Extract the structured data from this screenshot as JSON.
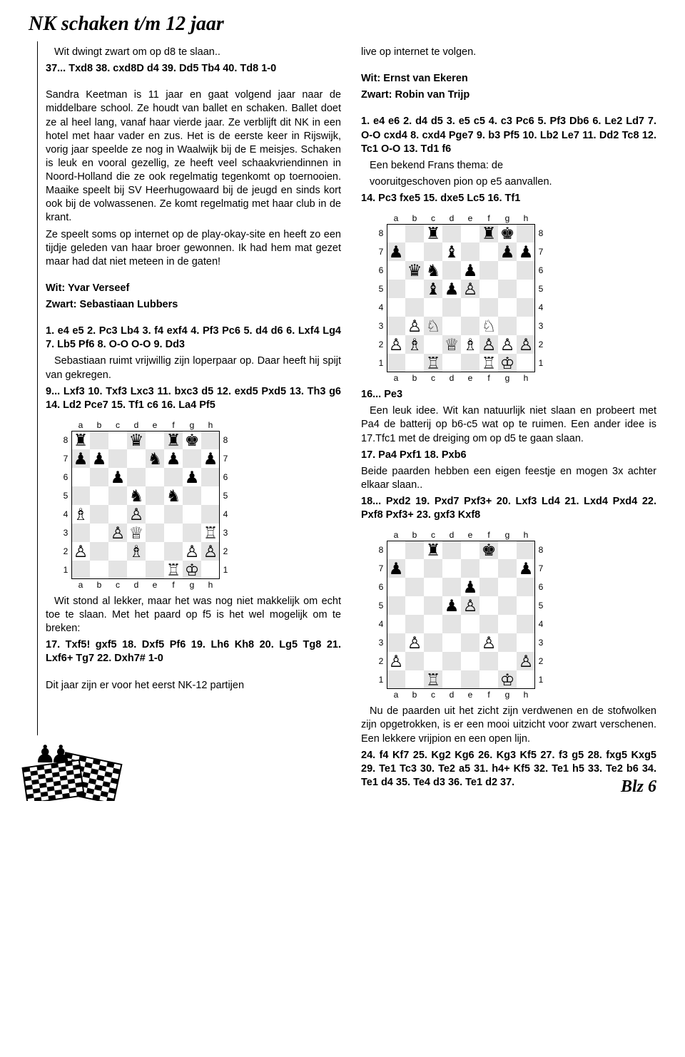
{
  "title": "NK schaken t/m 12 jaar",
  "page_label": "Blz 6",
  "col1": {
    "p1": "Wit dwingt zwart om op d8 te slaan..",
    "moves1": "37... Txd8 38. cxd8D d4 39. Dd5 Tb4 40. Td8 1-0",
    "bio": "Sandra Keetman is 11 jaar en gaat volgend jaar naar de middelbare school. Ze houdt van ballet en schaken. Ballet doet ze al heel lang, vanaf haar vierde jaar. Ze verblijft dit NK in een hotel met haar vader en zus. Het is de eerste keer in Rijswijk, vorig jaar speelde ze nog in Waalwijk bij de E meisjes. Schaken is leuk en vooral gezellig, ze heeft veel schaakvriendinnen in Noord-Holland die ze ook regelmatig tegenkomt op toernooien. Maaike speelt bij SV Heerhugowaard bij de jeugd en sinds kort ook bij de volwassenen. Ze komt regelmatig met haar club in de krant.",
    "bio2": "Ze speelt soms op internet op de play-okay-site en heeft zo een tijdje geleden van haar broer gewonnen. Ik had hem mat gezet maar had dat niet meteen in de gaten!",
    "white1": "Wit: Yvar Verseef",
    "black1": "Zwart: Sebastiaan Lubbers",
    "moves2": "1. e4 e5 2. Pc3 Lb4 3. f4 exf4 4. Pf3 Pc6 5. d4 d6 6. Lxf4 Lg4 7. Lb5 Pf6 8. O-O O-O 9. Dd3",
    "anno1": "Sebastiaan ruimt vrijwillig zijn loperpaar op. Daar heeft hij spijt van gekregen.",
    "moves3": "9... Lxf3 10. Txf3 Lxc3 11. bxc3 d5 12. exd5 Pxd5 13. Th3 g6 14. Ld2 Pce7 15. Tf1 c6 16. La4 Pf5",
    "anno2": "Wit stond al lekker, maar het was nog niet makkelijk om echt toe te slaan. Met het paard op f5 is het wel mogelijk om te breken:",
    "moves4": "17. Txf5! gxf5 18. Dxf5 Pf6 19. Lh6 Kh8 20. Lg5 Tg8 21. Lxf6+ Tg7 22. Dxh7# 1-0",
    "tail": "Dit jaar zijn er voor het eerst NK-12 partijen"
  },
  "col2": {
    "cont": "live op internet te volgen.",
    "white2": "Wit: Ernst van Ekeren",
    "black2": "Zwart: Robin van Trijp",
    "moves5": "1. e4 e6 2. d4 d5 3. e5 c5 4. c3 Pc6 5. Pf3 Db6 6. Le2 Ld7 7. O-O cxd4 8. cxd4 Pge7 9. b3 Pf5 10. Lb2 Le7 11. Dd2 Tc8 12. Tc1 O-O 13. Td1 f6",
    "anno3a": "Een bekend Frans thema: de",
    "anno3b": "vooruitgeschoven pion op e5 aanvallen.",
    "moves6": "14. Pc3 fxe5 15. dxe5 Lc5 16. Tf1",
    "moves7": "16... Pe3",
    "anno4": "Een leuk idee. Wit kan natuurlijk niet slaan en probeert met Pa4 de batterij op b6-c5 wat op te ruimen. Een ander idee is 17.Tfc1 met de dreiging om op d5 te gaan slaan.",
    "moves8": "17. Pa4 Pxf1 18. Pxb6",
    "anno5": "Beide paarden hebben een eigen feestje en mogen 3x achter elkaar slaan..",
    "moves9": "18... Pxd2 19. Pxd7 Pxf3+ 20. Lxf3 Ld4 21. Lxd4 Pxd4 22. Pxf8 Pxf3+ 23. gxf3 Kxf8",
    "anno6": "Nu de paarden uit het zicht zijn verdwenen en de stofwolken zijn opgetrokken, is er een mooi uitzicht voor zwart verschenen. Een lekkere vrijpion en een open lijn.",
    "moves10": "24. f4 Kf7 25. Kg2 Kg6 26. Kg3 Kf5 27. f3 g5 28. fxg5 Kxg5 29. Te1 Tc3 30. Te2 a5 31. h4+ Kf5 32. Te1 h5 33. Te2 b6 34. Te1 d4 35. Te4 d3 36. Te1 d2 37."
  },
  "boards": {
    "files": [
      "a",
      "b",
      "c",
      "d",
      "e",
      "f",
      "g",
      "h"
    ],
    "ranks": [
      "8",
      "7",
      "6",
      "5",
      "4",
      "3",
      "2",
      "1"
    ],
    "board1": [
      [
        "♜",
        "",
        "",
        "♛",
        "",
        "♜",
        "♚",
        ""
      ],
      [
        "♟",
        "♟",
        "",
        "",
        "♞",
        "♟",
        "",
        "♟"
      ],
      [
        "",
        "",
        "♟",
        "",
        "",
        "",
        "♟",
        ""
      ],
      [
        "",
        "",
        "",
        "♞",
        "",
        "♞",
        "",
        ""
      ],
      [
        "♗",
        "",
        "",
        "♙",
        "",
        "",
        "",
        ""
      ],
      [
        "",
        "",
        "♙",
        "♕",
        "",
        "",
        "",
        "♖"
      ],
      [
        "♙",
        "",
        "",
        "♗",
        "",
        "",
        "♙",
        "♙"
      ],
      [
        "",
        "",
        "",
        "",
        "",
        "♖",
        "♔",
        ""
      ]
    ],
    "board2": [
      [
        "",
        "",
        "♜",
        "",
        "",
        "♜",
        "♚",
        ""
      ],
      [
        "♟",
        "",
        "",
        "♝",
        "",
        "",
        "♟",
        "♟"
      ],
      [
        "",
        "♛",
        "♞",
        "",
        "♟",
        "",
        "",
        ""
      ],
      [
        "",
        "",
        "♝",
        "♟",
        "♙",
        "",
        "",
        ""
      ],
      [
        "",
        "",
        "",
        "",
        "",
        "",
        "",
        ""
      ],
      [
        "",
        "♙",
        "♘",
        "",
        "",
        "♘",
        "",
        ""
      ],
      [
        "♙",
        "♗",
        "",
        "♕",
        "♗",
        "♙",
        "♙",
        "♙"
      ],
      [
        "",
        "",
        "♖",
        "",
        "",
        "♖",
        "♔",
        ""
      ]
    ],
    "board3": [
      [
        "",
        "",
        "♜",
        "",
        "",
        "♚",
        "",
        ""
      ],
      [
        "♟",
        "",
        "",
        "",
        "",
        "",
        "",
        "♟"
      ],
      [
        "",
        "",
        "",
        "",
        "♟",
        "",
        "",
        ""
      ],
      [
        "",
        "",
        "",
        "♟",
        "♙",
        "",
        "",
        ""
      ],
      [
        "",
        "",
        "",
        "",
        "",
        "",
        "",
        ""
      ],
      [
        "",
        "♙",
        "",
        "",
        "",
        "♙",
        "",
        ""
      ],
      [
        "♙",
        "",
        "",
        "",
        "",
        "",
        "",
        "♙"
      ],
      [
        "",
        "",
        "♖",
        "",
        "",
        "",
        "♔",
        ""
      ]
    ]
  }
}
